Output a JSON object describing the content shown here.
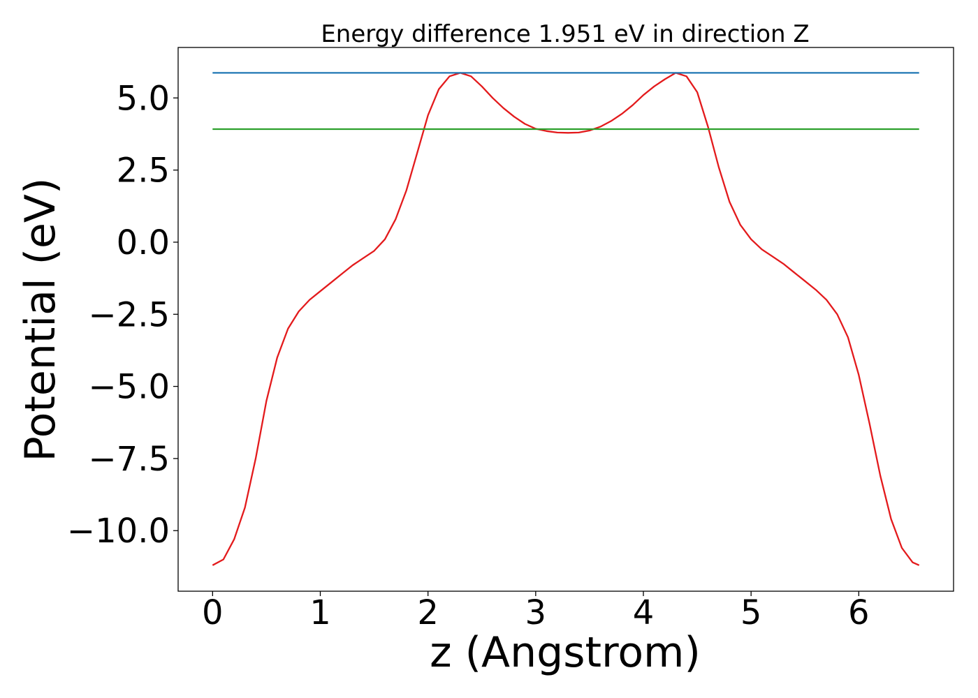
{
  "chart_data": {
    "type": "line",
    "title": "Energy difference 1.951 eV in direction Z",
    "xlabel": "z (Angstrom)",
    "ylabel": "Potential (eV)",
    "xlim": [
      -0.32,
      6.88
    ],
    "ylim": [
      -12.1,
      6.75
    ],
    "xticks": [
      0,
      1,
      2,
      3,
      4,
      5,
      6
    ],
    "xtick_labels": [
      "0",
      "1",
      "2",
      "3",
      "4",
      "5",
      "6"
    ],
    "yticks": [
      5.0,
      2.5,
      0.0,
      -2.5,
      -5.0,
      -7.5,
      -10.0
    ],
    "ytick_labels": [
      "5.0",
      "2.5",
      "0.0",
      "−2.5",
      "−5.0",
      "−7.5",
      "−10.0"
    ],
    "grid": false,
    "series": [
      {
        "color": "#e31a1c",
        "x": [
          0.0,
          0.1,
          0.2,
          0.3,
          0.4,
          0.5,
          0.6,
          0.7,
          0.8,
          0.9,
          1.0,
          1.1,
          1.2,
          1.3,
          1.4,
          1.5,
          1.6,
          1.7,
          1.8,
          1.9,
          2.0,
          2.1,
          2.2,
          2.3,
          2.4,
          2.5,
          2.6,
          2.7,
          2.8,
          2.9,
          3.0,
          3.1,
          3.2,
          3.3,
          3.4,
          3.5,
          3.6,
          3.7,
          3.8,
          3.9,
          4.0,
          4.1,
          4.2,
          4.3,
          4.4,
          4.5,
          4.6,
          4.7,
          4.8,
          4.9,
          5.0,
          5.1,
          5.2,
          5.3,
          5.4,
          5.5,
          5.6,
          5.7,
          5.8,
          5.9,
          6.0,
          6.1,
          6.2,
          6.3,
          6.4,
          6.5,
          6.56
        ],
        "y": [
          -11.2,
          -11.0,
          -10.3,
          -9.2,
          -7.5,
          -5.5,
          -4.0,
          -3.0,
          -2.4,
          -2.0,
          -1.7,
          -1.4,
          -1.1,
          -0.8,
          -0.55,
          -0.3,
          0.1,
          0.8,
          1.8,
          3.1,
          4.4,
          5.3,
          5.75,
          5.87,
          5.75,
          5.4,
          5.0,
          4.65,
          4.35,
          4.1,
          3.93,
          3.85,
          3.8,
          3.79,
          3.8,
          3.87,
          4.0,
          4.2,
          4.45,
          4.75,
          5.1,
          5.4,
          5.65,
          5.87,
          5.75,
          5.2,
          4.0,
          2.6,
          1.4,
          0.6,
          0.1,
          -0.25,
          -0.5,
          -0.75,
          -1.05,
          -1.35,
          -1.65,
          -2.0,
          -2.5,
          -3.3,
          -4.6,
          -6.3,
          -8.1,
          -9.6,
          -10.6,
          -11.1,
          -11.2
        ]
      },
      {
        "color": "#1f77b4",
        "x": [
          0.0,
          6.56
        ],
        "y": [
          5.87,
          5.87
        ]
      },
      {
        "color": "#2ca02c",
        "x": [
          0.0,
          6.56
        ],
        "y": [
          3.92,
          3.92
        ]
      }
    ]
  }
}
